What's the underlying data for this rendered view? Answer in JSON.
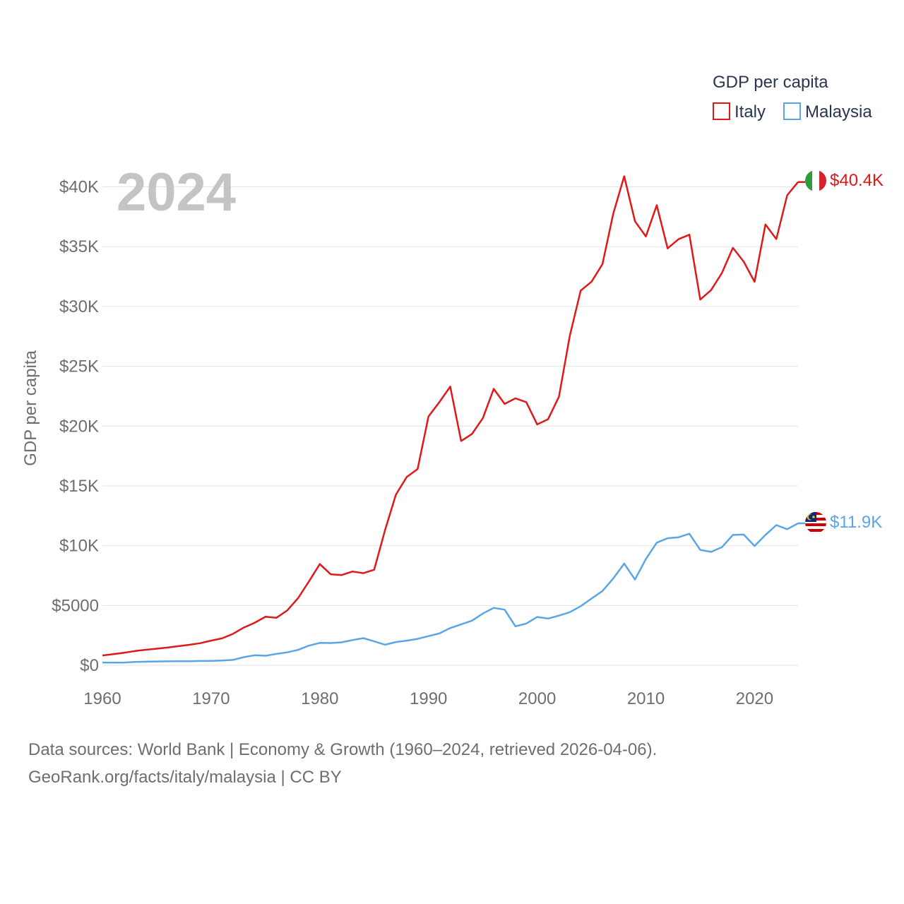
{
  "chart_data": {
    "type": "line",
    "year_label": "2024",
    "ylabel": "GDP per capita",
    "legend": {
      "title": "GDP per capita",
      "placement": "top-right"
    },
    "ylim": [
      0,
      42000
    ],
    "xlim": [
      1960,
      2024
    ],
    "y_ticks": [
      {
        "value": 0,
        "label": "$0"
      },
      {
        "value": 5000,
        "label": "$5000"
      },
      {
        "value": 10000,
        "label": "$10K"
      },
      {
        "value": 15000,
        "label": "$15K"
      },
      {
        "value": 20000,
        "label": "$20K"
      },
      {
        "value": 25000,
        "label": "$25K"
      },
      {
        "value": 30000,
        "label": "$30K"
      },
      {
        "value": 35000,
        "label": "$35K"
      },
      {
        "value": 40000,
        "label": "$40K"
      }
    ],
    "x_ticks": [
      {
        "value": 1960,
        "label": "1960"
      },
      {
        "value": 1970,
        "label": "1970"
      },
      {
        "value": 1980,
        "label": "1980"
      },
      {
        "value": 1990,
        "label": "1990"
      },
      {
        "value": 2000,
        "label": "2000"
      },
      {
        "value": 2010,
        "label": "2010"
      },
      {
        "value": 2020,
        "label": "2020"
      }
    ],
    "x": [
      1960,
      1961,
      1962,
      1963,
      1964,
      1965,
      1966,
      1967,
      1968,
      1969,
      1970,
      1971,
      1972,
      1973,
      1974,
      1975,
      1976,
      1977,
      1978,
      1979,
      1980,
      1981,
      1982,
      1983,
      1984,
      1985,
      1986,
      1987,
      1988,
      1989,
      1990,
      1991,
      1992,
      1993,
      1994,
      1995,
      1996,
      1997,
      1998,
      1999,
      2000,
      2001,
      2002,
      2003,
      2004,
      2005,
      2006,
      2007,
      2008,
      2009,
      2010,
      2011,
      2012,
      2013,
      2014,
      2015,
      2016,
      2017,
      2018,
      2019,
      2020,
      2021,
      2022,
      2023,
      2024
    ],
    "series": [
      {
        "name": "Italy",
        "color": "#e01818",
        "end_label": "$40.4K",
        "values": [
          820,
          930,
          1050,
          1190,
          1300,
          1390,
          1480,
          1600,
          1710,
          1850,
          2060,
          2250,
          2620,
          3150,
          3550,
          4060,
          3970,
          4580,
          5610,
          7010,
          8460,
          7610,
          7540,
          7840,
          7700,
          7990,
          11300,
          14260,
          15740,
          16410,
          20800,
          22000,
          23300,
          18750,
          19340,
          20660,
          23110,
          21850,
          22320,
          22000,
          20140,
          20570,
          22450,
          27540,
          31320,
          32070,
          33530,
          37770,
          40880,
          37120,
          35850,
          38460,
          34850,
          35620,
          36000,
          30570,
          31370,
          32810,
          34900,
          33750,
          32060,
          36850,
          35630,
          39290,
          40400
        ]
      },
      {
        "name": "Malaysia",
        "color": "#5aa5e6",
        "end_label": "$11.9K",
        "values": [
          230,
          220,
          230,
          280,
          300,
          320,
          330,
          340,
          340,
          360,
          370,
          400,
          450,
          680,
          840,
          800,
          950,
          1080,
          1290,
          1640,
          1870,
          1860,
          1920,
          2110,
          2270,
          2000,
          1720,
          1940,
          2060,
          2210,
          2440,
          2660,
          3110,
          3420,
          3730,
          4330,
          4800,
          4650,
          3260,
          3490,
          4040,
          3910,
          4150,
          4440,
          4940,
          5580,
          6210,
          7260,
          8500,
          7170,
          8880,
          10250,
          10620,
          10700,
          11000,
          9650,
          9480,
          9880,
          10900,
          10930,
          9970,
          10900,
          11720,
          11380,
          11870
        ]
      }
    ]
  },
  "footer": {
    "line1": "Data sources: World Bank | Economy & Growth (1960–2024, retrieved 2026-04-06).",
    "line2": "GeoRank.org/facts/italy/malaysia | CC BY"
  },
  "flags": [
    "italy-flag-icon",
    "malaysia-flag-icon"
  ]
}
